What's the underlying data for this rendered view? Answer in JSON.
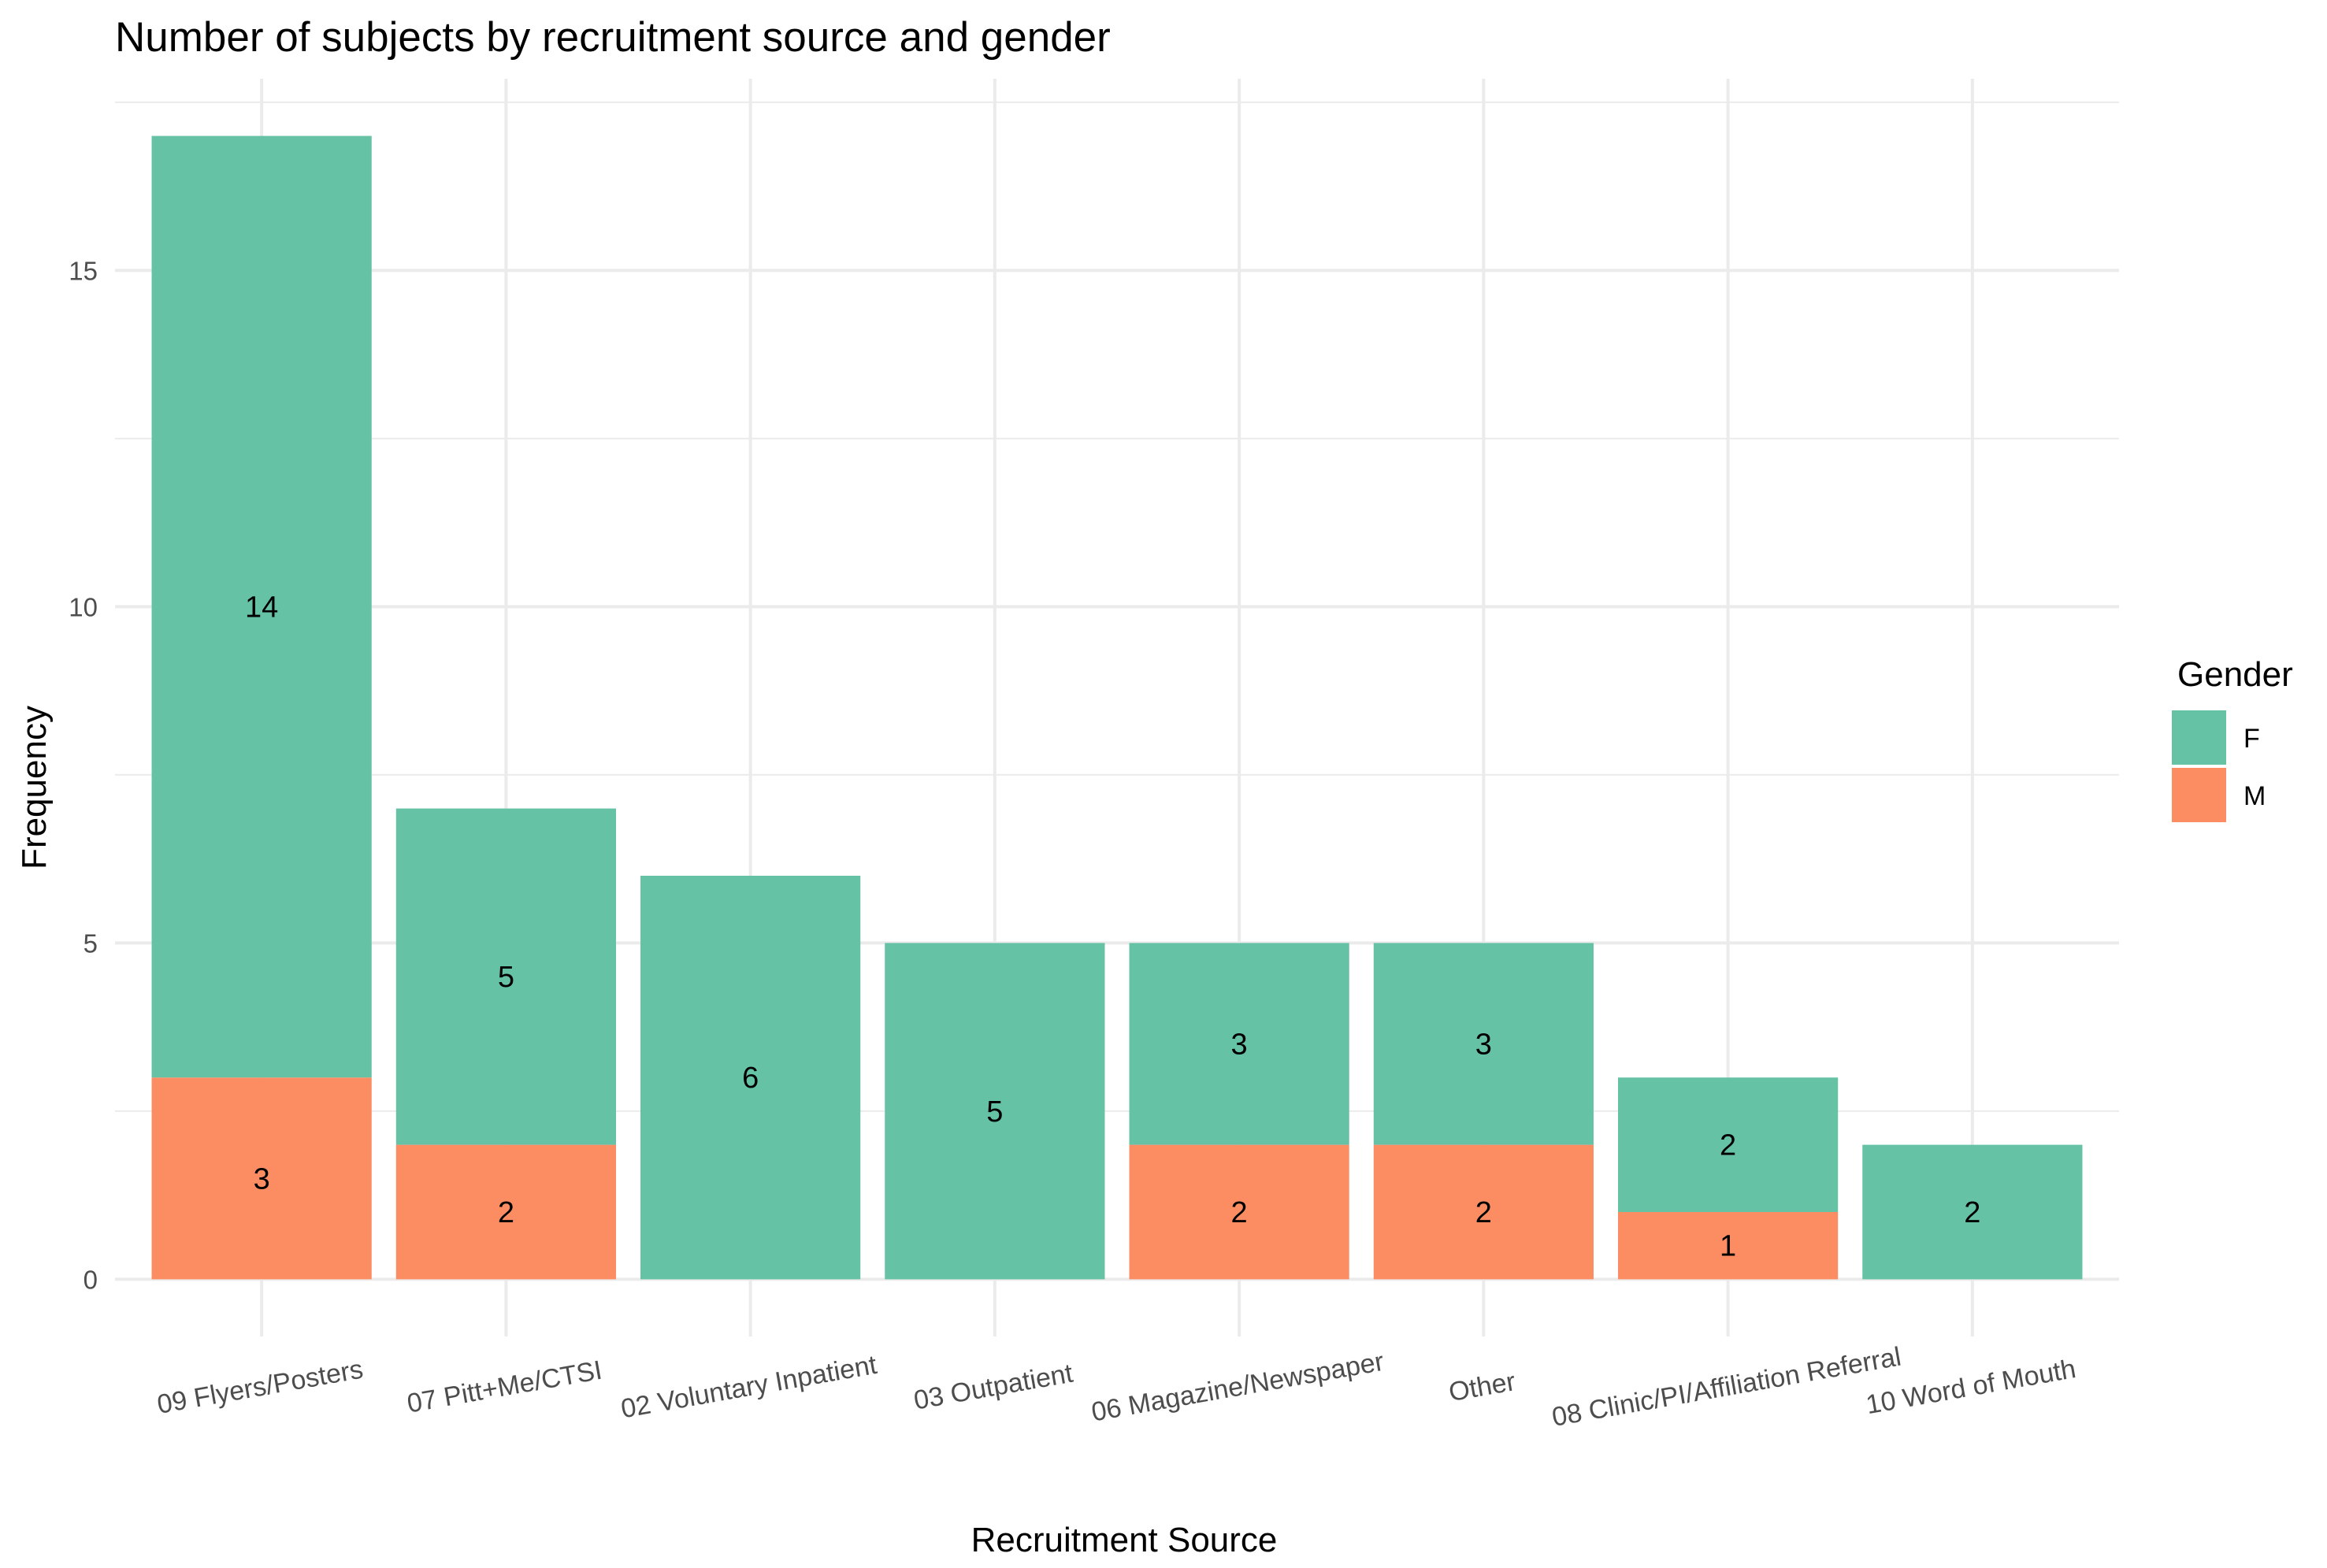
{
  "chart_data": {
    "type": "bar",
    "stacked": true,
    "title": "Number of subjects by recruitment source and gender",
    "xlabel": "Recruitment Source",
    "ylabel": "Frequency",
    "categories": [
      "09 Flyers/Posters",
      "07 Pitt+Me/CTSI",
      "02 Voluntary Inpatient",
      "03 Outpatient",
      "06 Magazine/Newspaper",
      "Other",
      "08 Clinic/PI/Affiliation Referral",
      "10 Word of Mouth"
    ],
    "series": [
      {
        "name": "M",
        "color": "#fc8d62",
        "values": [
          3,
          2,
          0,
          0,
          2,
          2,
          1,
          0
        ]
      },
      {
        "name": "F",
        "color": "#66c2a5",
        "values": [
          14,
          5,
          6,
          5,
          3,
          3,
          2,
          2
        ]
      }
    ],
    "legend": {
      "title": "Gender",
      "entries": [
        "F",
        "M"
      ],
      "position": "right"
    },
    "ylim": [
      0,
      17
    ],
    "yticks": [
      0,
      5,
      10,
      15
    ],
    "grid": true
  }
}
